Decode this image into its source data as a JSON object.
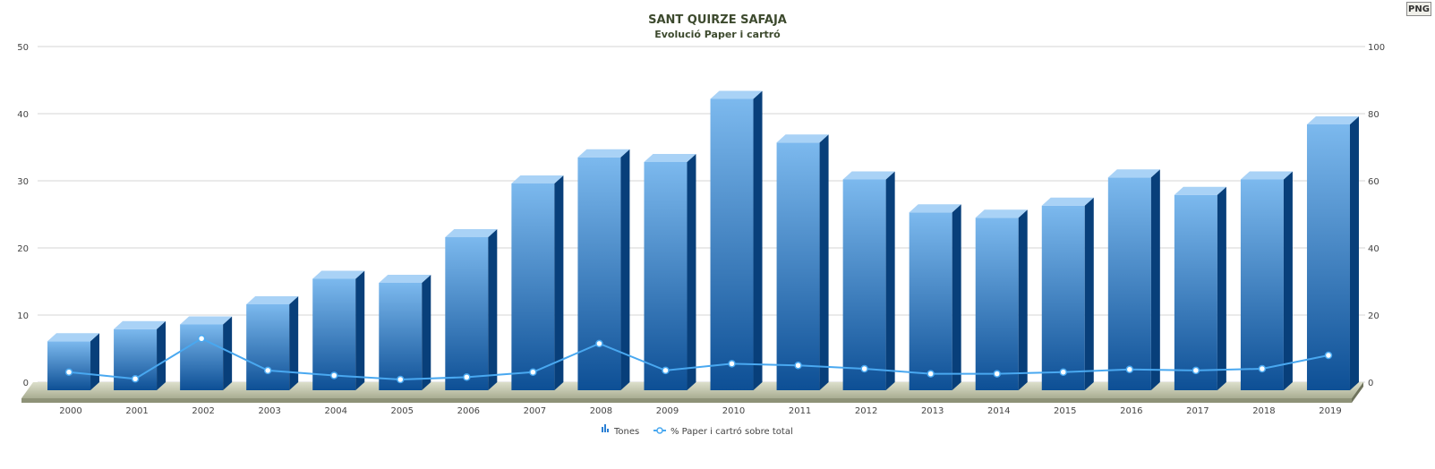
{
  "title": "SANT QUIRZE SAFAJA",
  "subtitle": "Evolució Paper i cartró",
  "export_button": {
    "label": "PNG"
  },
  "colors": {
    "bar_light": "#7cb9ee",
    "bar_dark": "#0d4f95",
    "bar_side": "#083f7a",
    "bar_top": "#a9d2f6",
    "line": "#49a8f0",
    "floor": "#c7cbb3",
    "grid": "#d6d6d6"
  },
  "chart_data": {
    "type": "bar",
    "title": "SANT QUIRZE SAFAJA",
    "subtitle": "Evolució Paper i cartró",
    "categories": [
      "2000",
      "2001",
      "2002",
      "2003",
      "2004",
      "2005",
      "2006",
      "2007",
      "2008",
      "2009",
      "2010",
      "2011",
      "2012",
      "2013",
      "2014",
      "2015",
      "2016",
      "2017",
      "2018",
      "2019"
    ],
    "series": [
      {
        "name": "Tones",
        "type": "bar",
        "axis": "left",
        "values": [
          7.3,
          9.1,
          9.8,
          12.8,
          16.6,
          16.0,
          22.8,
          30.8,
          34.7,
          34.0,
          43.4,
          36.9,
          31.4,
          26.5,
          25.7,
          27.5,
          31.7,
          29.1,
          31.4,
          39.6
        ]
      },
      {
        "name": "% Paper i cartró sobre total",
        "type": "line",
        "axis": "right",
        "values": [
          3,
          1,
          13,
          3.5,
          2,
          0.8,
          1.5,
          3,
          11.5,
          3.5,
          5.5,
          5,
          4,
          2.5,
          2.5,
          3,
          3.8,
          3.5,
          4,
          8
        ]
      }
    ],
    "y_left": {
      "min": 0,
      "max": 50,
      "ticks": [
        0,
        10,
        20,
        30,
        40,
        50
      ]
    },
    "y_right": {
      "min": 0,
      "max": 100,
      "ticks": [
        0,
        20,
        40,
        60,
        80,
        100
      ]
    },
    "grid": true,
    "legend_position": "bottom-center"
  }
}
